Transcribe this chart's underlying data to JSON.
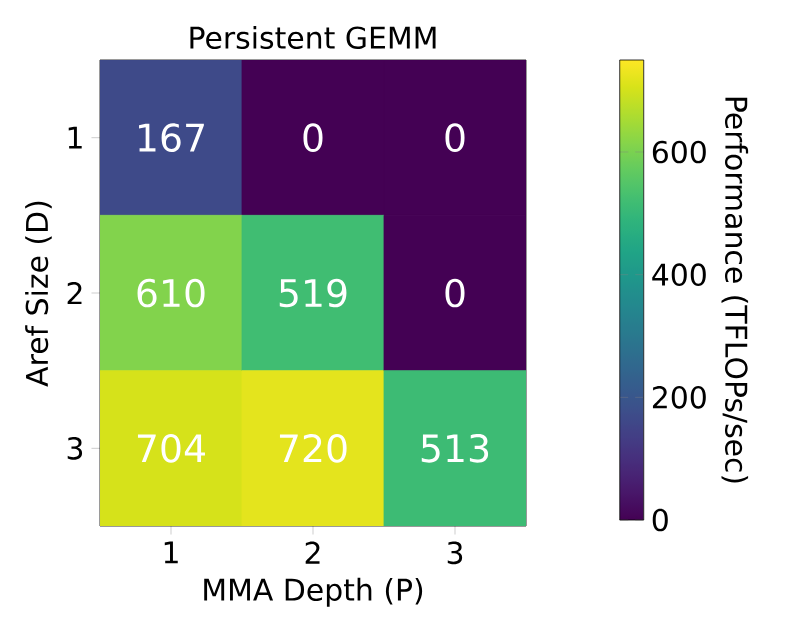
{
  "chart_data": {
    "type": "heatmap",
    "title": "Persistent GEMM",
    "xlabel": "MMA Depth (P)",
    "ylabel": "Aref Size (D)",
    "clabel": "Performance (TFLOPs/sec)",
    "categories": [
      "1",
      "2",
      "3"
    ],
    "y_categories": [
      "1",
      "2",
      "3"
    ],
    "cells": [
      [
        167,
        0,
        0
      ],
      [
        610,
        519,
        0
      ],
      [
        704,
        720,
        513
      ]
    ],
    "clim": [
      0,
      750
    ],
    "cticks": [
      0,
      200,
      400,
      600
    ],
    "data_labels": true
  }
}
